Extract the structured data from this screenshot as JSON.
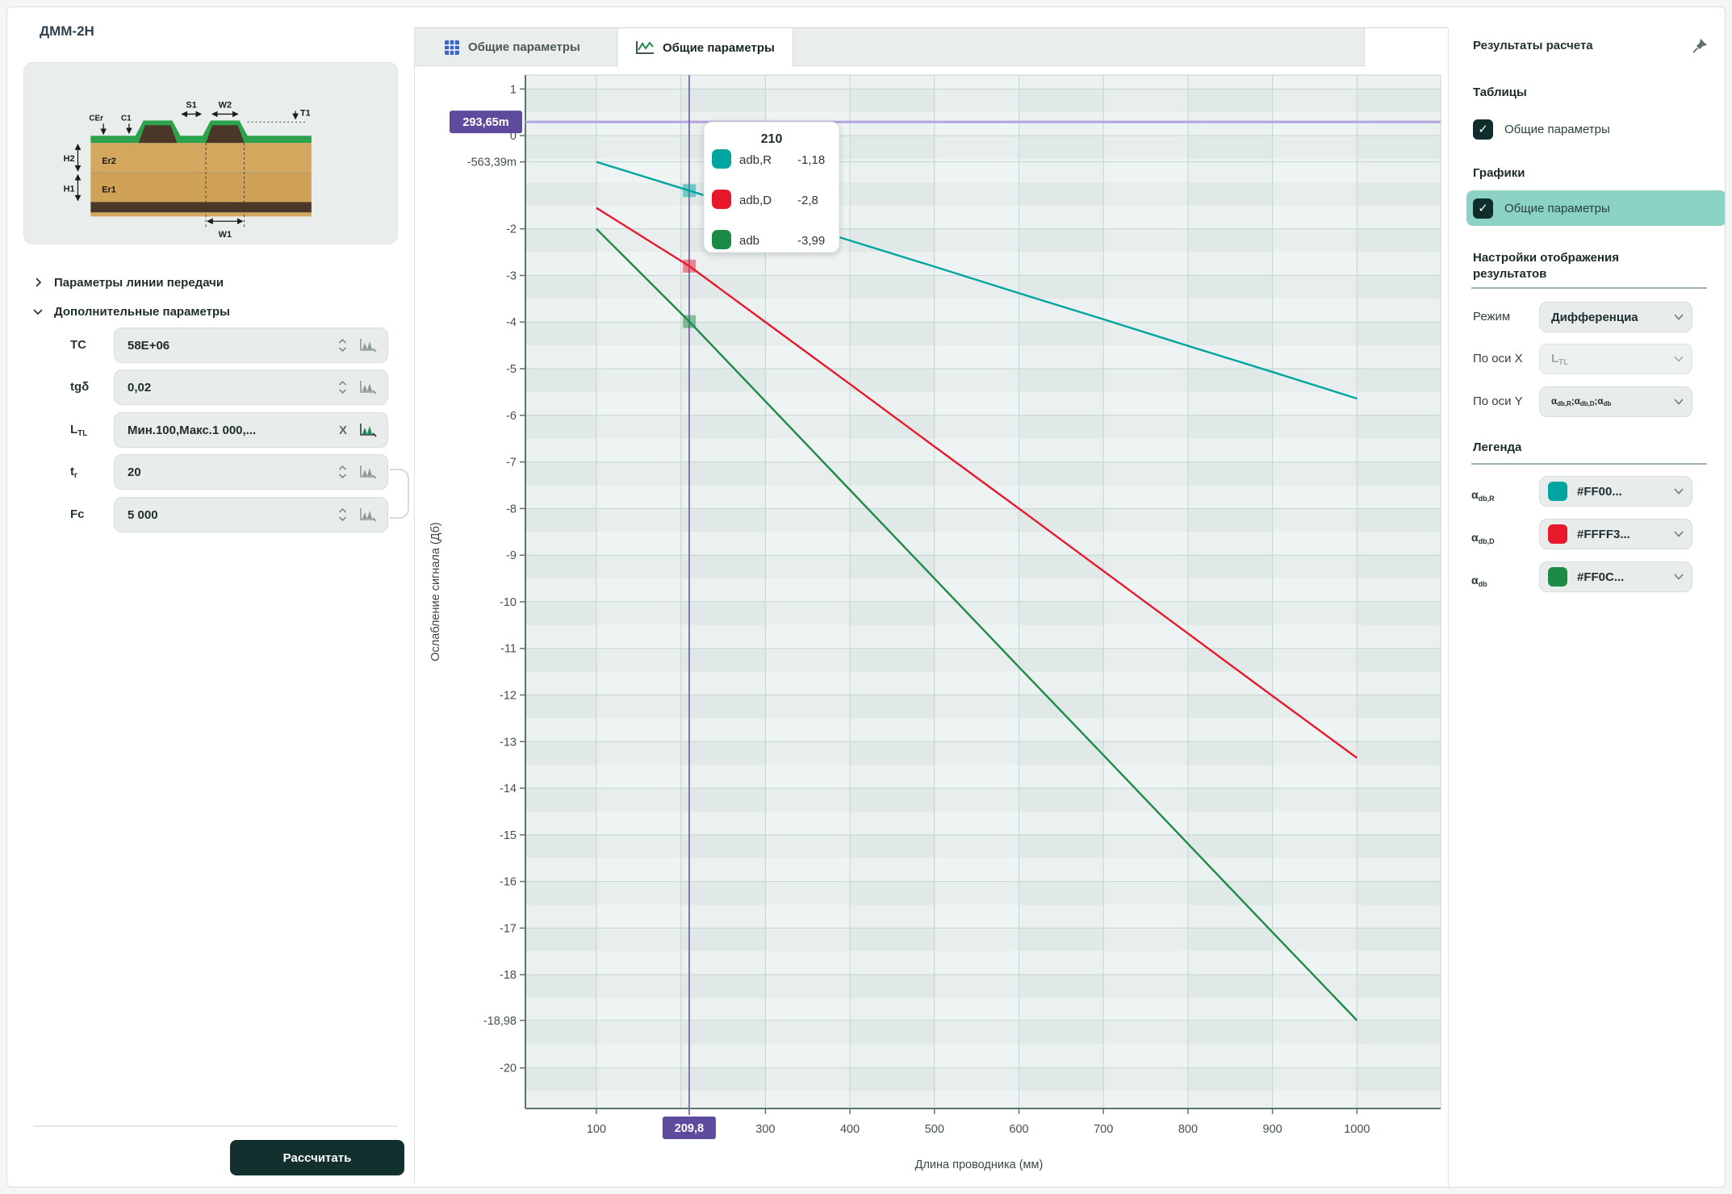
{
  "window": {
    "model_title": "ДММ-2Н"
  },
  "left_panel": {
    "diagram_labels": {
      "s1": "S1",
      "w2": "W2",
      "t1": "T1",
      "cer": "CEr",
      "c1": "C1",
      "h2": "H2",
      "er2": "Er2",
      "h1": "H1",
      "er1": "Er1",
      "w1": "W1"
    },
    "sections": [
      {
        "label": "Параметры линии передачи",
        "collapsed": true
      },
      {
        "label": "Дополнительные параметры",
        "collapsed": false
      }
    ],
    "params": [
      {
        "label": "TC",
        "sub": "",
        "value": "58E+06"
      },
      {
        "label": "tgδ",
        "sub": "",
        "value": "0,02"
      },
      {
        "label": "L",
        "sub": "TL",
        "value": "Мин.100,Макс.1 000,...",
        "clear_label": "X"
      },
      {
        "label": "t",
        "sub": "r",
        "value": "20"
      },
      {
        "label": "Fc",
        "sub": "",
        "value": "5 000"
      }
    ],
    "calculate_button": "Рассчитать"
  },
  "tab_bar": {
    "tabs": [
      {
        "label": "Общие параметры",
        "icon": "table-icon",
        "active": false
      },
      {
        "label": "Общие параметры",
        "icon": "line-chart-icon",
        "active": true
      }
    ]
  },
  "right_panel": {
    "title": "Результаты расчета",
    "tables_heading": "Таблицы",
    "tables_item": {
      "label": "Общие параметры",
      "checked": true,
      "check_glyph": "✓"
    },
    "charts_heading": "Графики",
    "charts_item": {
      "label": "Общие параметры",
      "checked": true,
      "check_glyph": "✓"
    },
    "display_heading_line1": "Настройки отображения",
    "display_heading_line2": "результатов",
    "settings": [
      {
        "label": "Режим",
        "value": "Дифференциа"
      },
      {
        "label": "По оси X",
        "value": "L",
        "value_sub": "TL"
      },
      {
        "label": "По оси Y",
        "parts": [
          {
            "m": "α",
            "s": "db,R"
          },
          {
            "m": ";α",
            "s": "db,D"
          },
          {
            "m": ";α",
            "s": "db"
          }
        ]
      }
    ],
    "legend_heading": "Легенда",
    "legend": [
      {
        "name": "α",
        "name_sub": "db,R",
        "color": "#00A5A0",
        "value": "#FF00..."
      },
      {
        "name": "α",
        "name_sub": "db,D",
        "color": "#E8192C",
        "value": "#FFFF3..."
      },
      {
        "name": "α",
        "name_sub": "db",
        "color": "#1D8A47",
        "value": "#FF0C..."
      }
    ]
  },
  "chart_data": {
    "type": "line",
    "title": "",
    "xlabel": "Длина проводника (мм)",
    "ylabel": "Ослабление сигнала (Дб)",
    "xlim": [
      16,
      1099
    ],
    "ylim": [
      -20.87,
      1.3
    ],
    "grid": true,
    "x_ticks": [
      {
        "v": 100,
        "label": "100"
      },
      {
        "v": 300,
        "label": "300"
      },
      {
        "v": 400,
        "label": "400"
      },
      {
        "v": 500,
        "label": "500"
      },
      {
        "v": 600,
        "label": "600"
      },
      {
        "v": 700,
        "label": "700"
      },
      {
        "v": 800,
        "label": "800"
      },
      {
        "v": 900,
        "label": "900"
      },
      {
        "v": 1000,
        "label": "1000"
      }
    ],
    "x_grid": [
      100,
      200,
      300,
      400,
      500,
      600,
      700,
      800,
      900,
      1000
    ],
    "y_ticks": [
      {
        "v": 1,
        "label": "1"
      },
      {
        "v": 0,
        "label": "0"
      },
      {
        "v": -0.56339,
        "label": "-563,39m"
      },
      {
        "v": -2,
        "label": "-2"
      },
      {
        "v": -3,
        "label": "-3"
      },
      {
        "v": -4,
        "label": "-4"
      },
      {
        "v": -5,
        "label": "-5"
      },
      {
        "v": -6,
        "label": "-6"
      },
      {
        "v": -7,
        "label": "-7"
      },
      {
        "v": -8,
        "label": "-8"
      },
      {
        "v": -9,
        "label": "-9"
      },
      {
        "v": -10,
        "label": "-10"
      },
      {
        "v": -11,
        "label": "-11"
      },
      {
        "v": -12,
        "label": "-12"
      },
      {
        "v": -13,
        "label": "-13"
      },
      {
        "v": -14,
        "label": "-14"
      },
      {
        "v": -15,
        "label": "-15"
      },
      {
        "v": -16,
        "label": "-16"
      },
      {
        "v": -17,
        "label": "-17"
      },
      {
        "v": -18,
        "label": "-18"
      },
      {
        "v": -18.98,
        "label": "-18,98"
      },
      {
        "v": -20,
        "label": "-20"
      }
    ],
    "series": [
      {
        "name": "αdb,R",
        "color": "#00A5A0",
        "x": [
          100,
          210,
          300,
          400,
          500,
          600,
          700,
          800,
          900,
          1000
        ],
        "y": [
          -0.563,
          -1.18,
          -1.69,
          -2.25,
          -2.81,
          -3.38,
          -3.94,
          -4.51,
          -5.07,
          -5.64
        ],
        "marker": {
          "x": 210,
          "y": -1.18
        }
      },
      {
        "name": "αdb,D",
        "color": "#E8192C",
        "x": [
          100,
          210,
          300,
          400,
          500,
          600,
          700,
          800,
          900,
          1000
        ],
        "y": [
          -1.55,
          -2.8,
          -4.0,
          -5.33,
          -6.67,
          -8.0,
          -9.34,
          -10.68,
          -12.02,
          -13.35
        ],
        "marker": {
          "x": 210,
          "y": -2.8
        }
      },
      {
        "name": "αdb",
        "color": "#1D8A47",
        "x": [
          100,
          210,
          300,
          400,
          500,
          600,
          700,
          800,
          900,
          1000
        ],
        "y": [
          -2.0,
          -3.99,
          -5.7,
          -7.6,
          -9.5,
          -11.4,
          -13.29,
          -15.19,
          -17.09,
          -18.98
        ],
        "marker": {
          "x": 210,
          "y": -3.99
        }
      }
    ],
    "crosshair": {
      "x": 209.8,
      "x_label": "209,8",
      "y": 0.29365,
      "y_label": "293,65m"
    },
    "tooltip": {
      "title": "210",
      "rows": [
        {
          "name": "adb,R",
          "value": "-1,18",
          "color": "#00A5A0"
        },
        {
          "name": "adb,D",
          "value": "-2,8",
          "color": "#E8192C"
        },
        {
          "name": "adb",
          "value": "-3,99",
          "color": "#1D8A47"
        }
      ]
    },
    "colors": {
      "band_dark": "#E0E9E8",
      "band_light": "#EAF1F0",
      "grid": "#C2D5D2",
      "axis": "#5E7370",
      "tick_text": "#42504F",
      "crosshair_v": "#7B68B8",
      "crosshair_h": "#B2A4DC",
      "badge": "#5F4B9E",
      "column_overlay_alpha": 0.22
    }
  }
}
